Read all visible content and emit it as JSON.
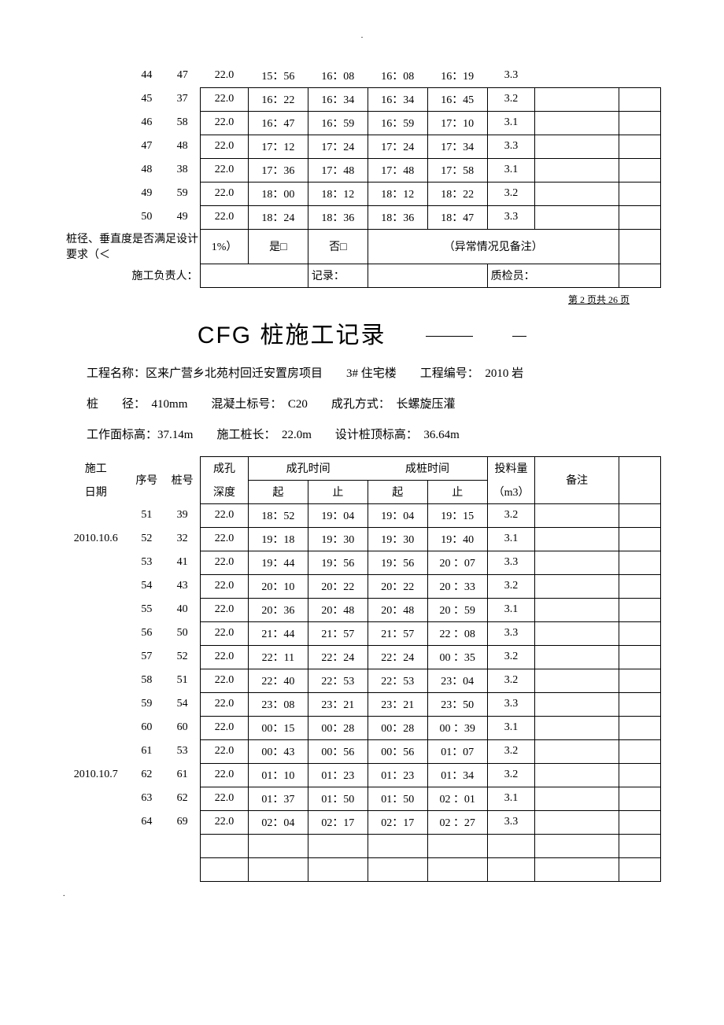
{
  "colors": {
    "text": "#000000",
    "bg": "#ffffff",
    "border": "#000000"
  },
  "top_table": {
    "rows": [
      {
        "seq": "44",
        "pile": "47",
        "depth": "22.0",
        "t1": "15：56",
        "t2": "16：08",
        "t3": "16：08",
        "t4": "16：19",
        "vol": "3.3"
      },
      {
        "seq": "45",
        "pile": "37",
        "depth": "22.0",
        "t1": "16：22",
        "t2": "16：34",
        "t3": "16：34",
        "t4": "16：45",
        "vol": "3.2"
      },
      {
        "seq": "46",
        "pile": "58",
        "depth": "22.0",
        "t1": "16：47",
        "t2": "16：59",
        "t3": "16：59",
        "t4": "17：10",
        "vol": "3.1"
      },
      {
        "seq": "47",
        "pile": "48",
        "depth": "22.0",
        "t1": "17：12",
        "t2": "17：24",
        "t3": "17：24",
        "t4": "17：34",
        "vol": "3.3"
      },
      {
        "seq": "48",
        "pile": "38",
        "depth": "22.0",
        "t1": "17：36",
        "t2": "17：48",
        "t3": "17：48",
        "t4": "17：58",
        "vol": "3.1"
      },
      {
        "seq": "49",
        "pile": "59",
        "depth": "22.0",
        "t1": "18：00",
        "t2": "18：12",
        "t3": "18：12",
        "t4": "18：22",
        "vol": "3.2"
      },
      {
        "seq": "50",
        "pile": "49",
        "depth": "22.0",
        "t1": "18：24",
        "t2": "18：36",
        "t3": "18：36",
        "t4": "18：47",
        "vol": "3.3"
      }
    ],
    "req_label_a": "桩径、垂直度是否满足设计要求（＜",
    "req_pct": "1%）",
    "req_yes": "是□",
    "req_no": "否□",
    "req_note": "（异常情况见备注）",
    "sign_a": "施工负责人：",
    "sign_b": "记录：",
    "sign_c": "质检员："
  },
  "page_number": "第 2 页共 26 页",
  "title": "CFG 桩施工记录",
  "info": {
    "line1": {
      "a_label": "工程名称：",
      "a_val": "区来广营乡北苑村回迁安置房项目",
      "b_val": "3# 住宅楼",
      "c_label": "工程编号：",
      "c_val": "2010 岩"
    },
    "line2": {
      "a_label": "桩　　径：",
      "a_val": "410mm",
      "b_label": "混凝土标号：",
      "b_val": "C20",
      "c_label": "成孔方式：",
      "c_val": "长螺旋压灌"
    },
    "line3": {
      "a_label": "工作面标高：",
      "a_val": "37.14m",
      "b_label": "施工桩长：",
      "b_val": "22.0m",
      "c_label": "设计桩顶标高：",
      "c_val": "36.64m"
    }
  },
  "headers": {
    "date": "施工",
    "date2": "日期",
    "seq": "序号",
    "pile": "桩号",
    "hole": "成孔",
    "depth": "深度",
    "hole_time": "成孔时间",
    "pile_time": "成桩时间",
    "start": "起",
    "end": "止",
    "vol": "投料量",
    "vol_unit": "（m3）",
    "note": "备注"
  },
  "bottom_table": {
    "rows": [
      {
        "date": "",
        "seq": "51",
        "pile": "39",
        "depth": "22.0",
        "t1": "18：52",
        "t2": "19：04",
        "t3": "19：04",
        "t4": "19：15",
        "vol": "3.2"
      },
      {
        "date": "2010.10.6",
        "seq": "52",
        "pile": "32",
        "depth": "22.0",
        "t1": "19：18",
        "t2": "19：30",
        "t3": "19：30",
        "t4": "19：40",
        "vol": "3.1"
      },
      {
        "date": "",
        "seq": "53",
        "pile": "41",
        "depth": "22.0",
        "t1": "19：44",
        "t2": "19：56",
        "t3": "19：56",
        "t4": "20 ：07",
        "vol": "3.3"
      },
      {
        "date": "",
        "seq": "54",
        "pile": "43",
        "depth": "22.0",
        "t1": "20：10",
        "t2": "20：22",
        "t3": "20：22",
        "t4": "20 ：33",
        "vol": "3.2"
      },
      {
        "date": "",
        "seq": "55",
        "pile": "40",
        "depth": "22.0",
        "t1": "20：36",
        "t2": "20：48",
        "t3": "20：48",
        "t4": "20 ：59",
        "vol": "3.1"
      },
      {
        "date": "",
        "seq": "56",
        "pile": "50",
        "depth": "22.0",
        "t1": "21：44",
        "t2": "21：57",
        "t3": "21：57",
        "t4": "22 ：08",
        "vol": "3.3"
      },
      {
        "date": "",
        "seq": "57",
        "pile": "52",
        "depth": "22.0",
        "t1": "22：11",
        "t2": "22：24",
        "t3": "22：24",
        "t4": "00 ：35",
        "vol": "3.2"
      },
      {
        "date": "",
        "seq": "58",
        "pile": "51",
        "depth": "22.0",
        "t1": "22：40",
        "t2": "22：53",
        "t3": "22：53",
        "t4": "23：04",
        "vol": "3.2"
      },
      {
        "date": "",
        "seq": "59",
        "pile": "54",
        "depth": "22.0",
        "t1": "23：08",
        "t2": "23：21",
        "t3": "23：21",
        "t4": "23：50",
        "vol": "3.3"
      },
      {
        "date": "",
        "seq": "60",
        "pile": "60",
        "depth": "22.0",
        "t1": "00：15",
        "t2": "00：28",
        "t3": "00：28",
        "t4": "00 ：39",
        "vol": "3.1"
      },
      {
        "date": "",
        "seq": "61",
        "pile": "53",
        "depth": "22.0",
        "t1": "00：43",
        "t2": "00：56",
        "t3": "00：56",
        "t4": "01：07",
        "vol": "3.2"
      },
      {
        "date": "2010.10.7",
        "seq": "62",
        "pile": "61",
        "depth": "22.0",
        "t1": "01：10",
        "t2": "01：23",
        "t3": "01：23",
        "t4": "01：34",
        "vol": "3.2"
      },
      {
        "date": "",
        "seq": "63",
        "pile": "62",
        "depth": "22.0",
        "t1": "01：37",
        "t2": "01：50",
        "t3": "01：50",
        "t4": "02 ：01",
        "vol": "3.1"
      },
      {
        "date": "",
        "seq": "64",
        "pile": "69",
        "depth": "22.0",
        "t1": "02：04",
        "t2": "02：17",
        "t3": "02：17",
        "t4": "02 ：27",
        "vol": "3.3"
      }
    ]
  }
}
